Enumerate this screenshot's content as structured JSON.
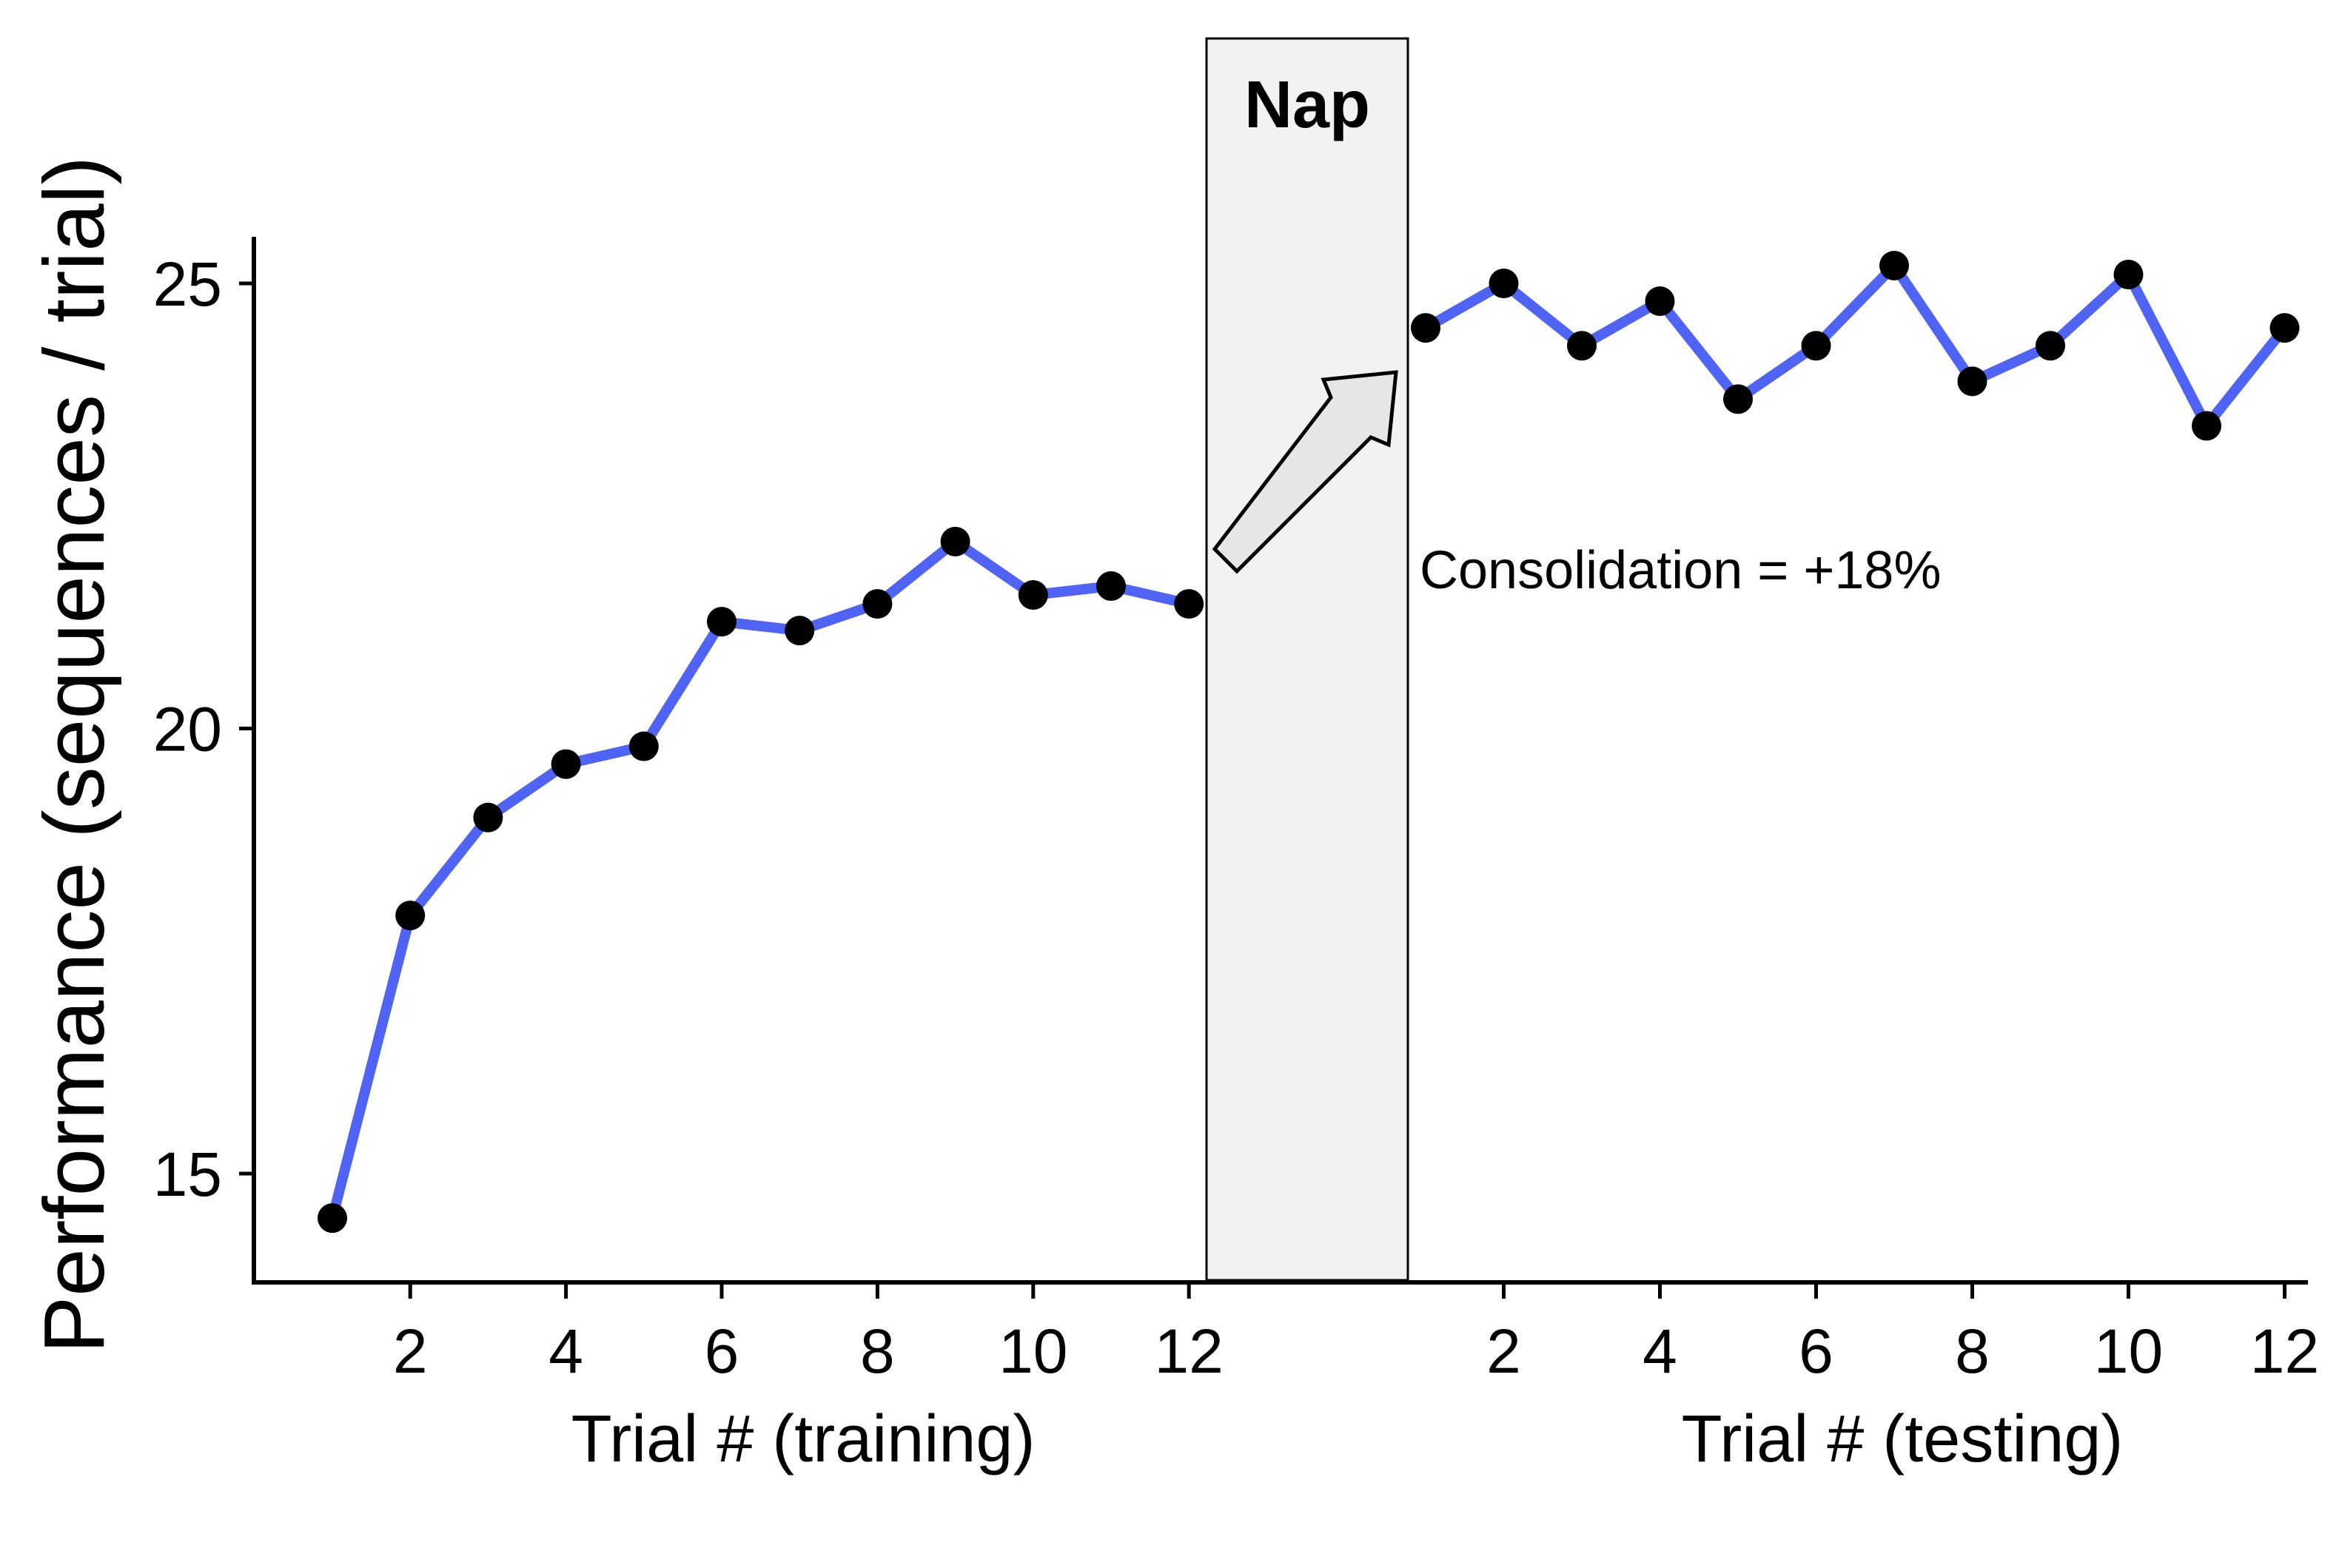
{
  "chart_data": {
    "type": "line",
    "ylabel": "Performance (sequences / trial)",
    "ylim": [
      13.8,
      25.5
    ],
    "yticks": [
      15,
      20,
      25
    ],
    "line_color": "#4f63f5",
    "marker_color": "#000000",
    "nap": {
      "label": "Nap",
      "fill": "#f2f2f2"
    },
    "annotation": "Consolidation = +18%",
    "panels": [
      {
        "xlabel": "Trial # (training)",
        "xticks": [
          2,
          4,
          6,
          8,
          10,
          12
        ],
        "series": [
          {
            "x": [
              1,
              2,
              3,
              4,
              5,
              6,
              7,
              8,
              9,
              10,
              11,
              12
            ],
            "values": [
              14.5,
              17.9,
              19.0,
              19.6,
              19.8,
              21.2,
              21.1,
              21.4,
              22.1,
              21.5,
              21.6,
              21.4
            ]
          }
        ]
      },
      {
        "xlabel": "Trial # (testing)",
        "xticks": [
          2,
          4,
          6,
          8,
          10,
          12
        ],
        "series": [
          {
            "x": [
              1,
              2,
              3,
              4,
              5,
              6,
              7,
              8,
              9,
              10,
              11,
              12
            ],
            "values": [
              24.5,
              25.0,
              24.3,
              24.8,
              23.7,
              24.3,
              25.2,
              23.9,
              24.3,
              25.1,
              23.4,
              24.5
            ]
          }
        ]
      }
    ]
  }
}
